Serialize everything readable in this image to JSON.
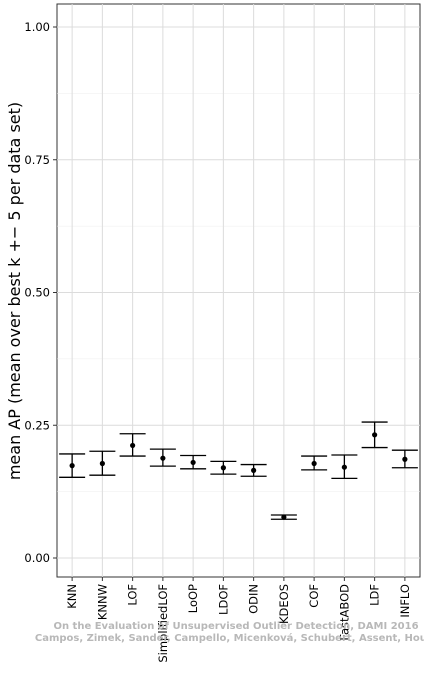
{
  "chart_data": {
    "type": "scatter",
    "subtype": "point-with-errorbars",
    "ylabel": "mean AP (mean over best k +− 5 per data set)",
    "xlabel": "",
    "ylim": [
      0,
      1
    ],
    "yticks": [
      0.0,
      0.25,
      0.5,
      0.75,
      1.0
    ],
    "ytick_labels": [
      "0.00",
      "0.25",
      "0.50",
      "0.75",
      "1.00"
    ],
    "grid": true,
    "categories": [
      "KNN",
      "KNNW",
      "LOF",
      "SimplifiedLOF",
      "LoOP",
      "LDOF",
      "ODIN",
      "KDEOS",
      "COF",
      "FastABOD",
      "LDF",
      "INFLO"
    ],
    "values": [
      0.174,
      0.178,
      0.212,
      0.188,
      0.18,
      0.17,
      0.165,
      0.077,
      0.178,
      0.171,
      0.232,
      0.186
    ],
    "lower": [
      0.152,
      0.156,
      0.192,
      0.173,
      0.168,
      0.158,
      0.154,
      0.073,
      0.166,
      0.15,
      0.208,
      0.17
    ],
    "upper": [
      0.196,
      0.201,
      0.234,
      0.205,
      0.193,
      0.182,
      0.176,
      0.081,
      0.192,
      0.194,
      0.256,
      0.203
    ]
  },
  "watermark": {
    "line1": "On the Evaluation of Unsupervised Outlier Detection, DAMI 2016",
    "line2": "Campos, Zimek, Sander, Campello, Micenková, Schubert, Assent, Houle"
  }
}
